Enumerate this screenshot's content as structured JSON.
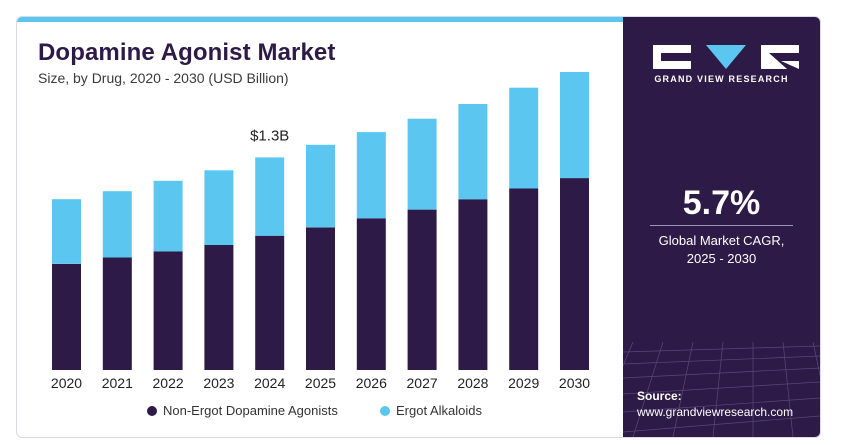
{
  "title": "Dopamine Agonist Market",
  "subtitle": "Size, by Drug, 2020 - 2030 (USD Billion)",
  "colors": {
    "non_ergot": "#2e1a47",
    "ergot": "#5bc7f1",
    "panel": "#2e1a47",
    "accent": "#5bc7f1"
  },
  "chart_data": {
    "type": "bar",
    "stacked": true,
    "categories": [
      "2020",
      "2021",
      "2022",
      "2023",
      "2024",
      "2025",
      "2026",
      "2027",
      "2028",
      "2029",
      "2030"
    ],
    "series": [
      {
        "name": "Non-Ergot Dopamine Agonists",
        "values": [
          0.634,
          0.672,
          0.709,
          0.747,
          0.802,
          0.852,
          0.906,
          0.958,
          1.02,
          1.084,
          1.146
        ]
      },
      {
        "name": "Ergot Alkaloids",
        "values": [
          0.386,
          0.396,
          0.421,
          0.446,
          0.468,
          0.493,
          0.515,
          0.543,
          0.569,
          0.602,
          0.634
        ]
      }
    ],
    "ylim": [
      0,
      1.78
    ],
    "annotation": {
      "category": "2024",
      "text": "$1.3B"
    },
    "legend": "bottom-center",
    "grid": false
  },
  "side_panel": {
    "brand": "GRAND VIEW RESEARCH",
    "cagr_value": "5.7%",
    "cagr_label_line1": "Global Market CAGR,",
    "cagr_label_line2": "2025 - 2030",
    "source_label": "Source:",
    "source_url": "www.grandviewresearch.com"
  }
}
